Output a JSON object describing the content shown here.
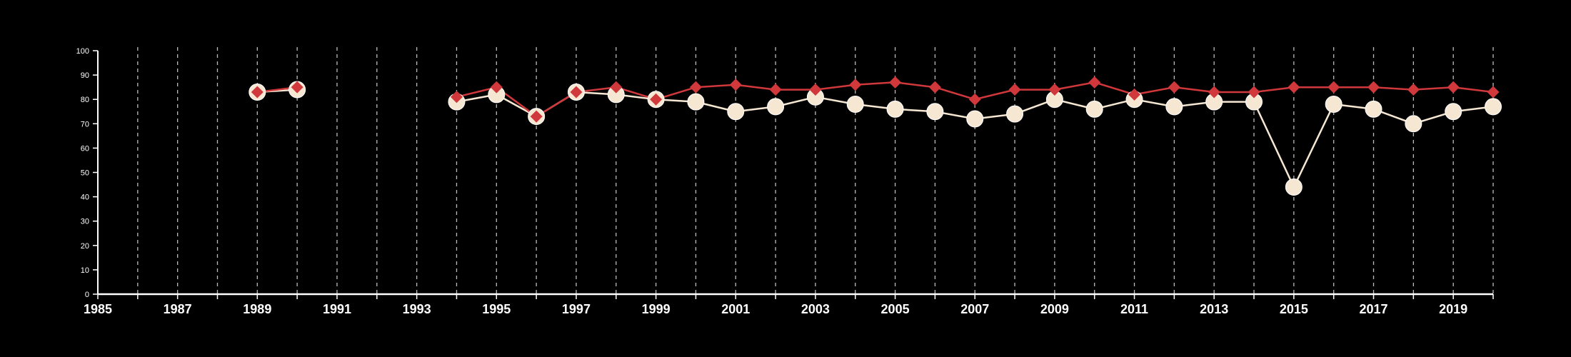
{
  "chart_data": {
    "type": "line",
    "title": "",
    "xlabel": "",
    "ylabel": "",
    "xlim": [
      1985,
      2020
    ],
    "ylim": [
      0,
      100
    ],
    "yticks": [
      0,
      10,
      20,
      30,
      40,
      50,
      60,
      70,
      80,
      90,
      100
    ],
    "xticks": [
      1985,
      1987,
      1989,
      1991,
      1993,
      1995,
      1997,
      1999,
      2001,
      2003,
      2005,
      2007,
      2009,
      2011,
      2013,
      2015,
      2017,
      2019
    ],
    "grid": "vertical dashed at each year",
    "legend": "none",
    "colors": {
      "background": "#000000",
      "axis": "#ffffff",
      "grid": "#bbbbbb",
      "series_red": "#d0383b",
      "series_cream": "#f6e7d3"
    },
    "series": [
      {
        "marker": "circle",
        "color": "#f6e7d3",
        "x": [
          1989,
          1990,
          1994,
          1995,
          1996,
          1997,
          1998,
          1999,
          2000,
          2001,
          2002,
          2003,
          2004,
          2005,
          2006,
          2007,
          2008,
          2009,
          2010,
          2011,
          2012,
          2013,
          2014,
          2015,
          2016,
          2017,
          2018,
          2019,
          2020
        ],
        "values": [
          83,
          84,
          79,
          82,
          73,
          83,
          82,
          80,
          79,
          75,
          77,
          81,
          78,
          76,
          75,
          72,
          74,
          80,
          76,
          80,
          77,
          79,
          79,
          44,
          78,
          76,
          70,
          75,
          77
        ]
      },
      {
        "marker": "diamond",
        "color": "#d0383b",
        "x": [
          1989,
          1990,
          1994,
          1995,
          1996,
          1997,
          1998,
          1999,
          2000,
          2001,
          2002,
          2003,
          2004,
          2005,
          2006,
          2007,
          2008,
          2009,
          2010,
          2011,
          2012,
          2013,
          2014,
          2015,
          2016,
          2017,
          2018,
          2019,
          2020
        ],
        "values": [
          83,
          85,
          81,
          85,
          73,
          83,
          85,
          80,
          85,
          86,
          84,
          84,
          86,
          87,
          85,
          80,
          84,
          84,
          87,
          82,
          85,
          83,
          83,
          85,
          85,
          85,
          84,
          85,
          83
        ]
      }
    ]
  }
}
